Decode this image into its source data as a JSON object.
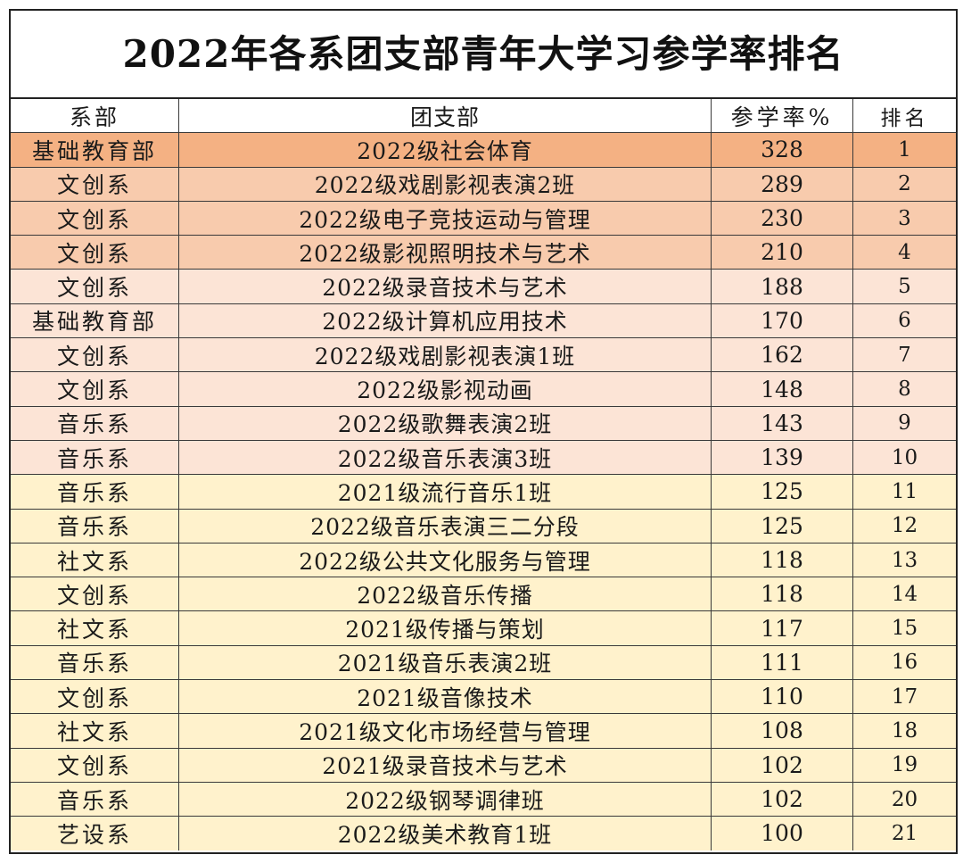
{
  "title": "2022年各系团支部青年大学习参学率排名",
  "headers": {
    "dept": "系部",
    "branch": "团支部",
    "rate": "参学率%",
    "rank": "排名"
  },
  "colors": {
    "tier1": "#f4b183",
    "tier2": "#f8cbad",
    "tier3": "#fce4d6",
    "tier4": "#fff2cc"
  },
  "rows": [
    {
      "dept": "基础教育部",
      "branch": "2022级社会体育",
      "rate": "328",
      "rank": "1",
      "tier": "tier1"
    },
    {
      "dept": "文创系",
      "branch": "2022级戏剧影视表演2班",
      "rate": "289",
      "rank": "2",
      "tier": "tier2"
    },
    {
      "dept": "文创系",
      "branch": "2022级电子竞技运动与管理",
      "rate": "230",
      "rank": "3",
      "tier": "tier2"
    },
    {
      "dept": "文创系",
      "branch": "2022级影视照明技术与艺术",
      "rate": "210",
      "rank": "4",
      "tier": "tier2"
    },
    {
      "dept": "文创系",
      "branch": "2022级录音技术与艺术",
      "rate": "188",
      "rank": "5",
      "tier": "tier3"
    },
    {
      "dept": "基础教育部",
      "branch": "2022级计算机应用技术",
      "rate": "170",
      "rank": "6",
      "tier": "tier3"
    },
    {
      "dept": "文创系",
      "branch": "2022级戏剧影视表演1班",
      "rate": "162",
      "rank": "7",
      "tier": "tier3"
    },
    {
      "dept": "文创系",
      "branch": "2022级影视动画",
      "rate": "148",
      "rank": "8",
      "tier": "tier3"
    },
    {
      "dept": "音乐系",
      "branch": "2022级歌舞表演2班",
      "rate": "143",
      "rank": "9",
      "tier": "tier3"
    },
    {
      "dept": "音乐系",
      "branch": "2022级音乐表演3班",
      "rate": "139",
      "rank": "10",
      "tier": "tier3"
    },
    {
      "dept": "音乐系",
      "branch": "2021级流行音乐1班",
      "rate": "125",
      "rank": "11",
      "tier": "tier4"
    },
    {
      "dept": "音乐系",
      "branch": "2022级音乐表演三二分段",
      "rate": "125",
      "rank": "12",
      "tier": "tier4"
    },
    {
      "dept": "社文系",
      "branch": "2022级公共文化服务与管理",
      "rate": "118",
      "rank": "13",
      "tier": "tier4"
    },
    {
      "dept": "文创系",
      "branch": "2022级音乐传播",
      "rate": "118",
      "rank": "14",
      "tier": "tier4"
    },
    {
      "dept": "社文系",
      "branch": "2021级传播与策划",
      "rate": "117",
      "rank": "15",
      "tier": "tier4"
    },
    {
      "dept": "音乐系",
      "branch": "2021级音乐表演2班",
      "rate": "111",
      "rank": "16",
      "tier": "tier4"
    },
    {
      "dept": "文创系",
      "branch": "2021级音像技术",
      "rate": "110",
      "rank": "17",
      "tier": "tier4"
    },
    {
      "dept": "社文系",
      "branch": "2021级文化市场经营与管理",
      "rate": "108",
      "rank": "18",
      "tier": "tier4"
    },
    {
      "dept": "文创系",
      "branch": "2021级录音技术与艺术",
      "rate": "102",
      "rank": "19",
      "tier": "tier4"
    },
    {
      "dept": "音乐系",
      "branch": "2022级钢琴调律班",
      "rate": "102",
      "rank": "20",
      "tier": "tier4"
    },
    {
      "dept": "艺设系",
      "branch": "2022级美术教育1班",
      "rate": "100",
      "rank": "21",
      "tier": "tier4"
    }
  ]
}
